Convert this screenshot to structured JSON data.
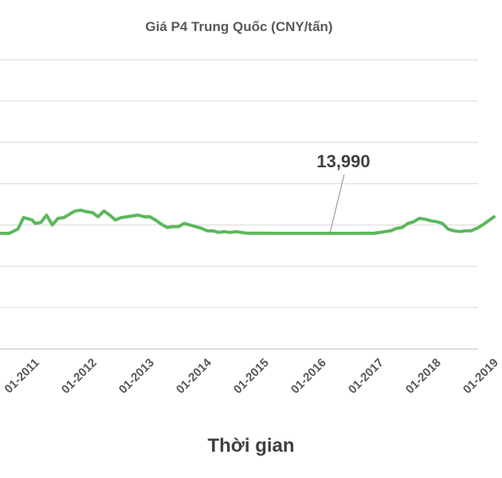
{
  "chart_data": {
    "type": "line",
    "title": "Giá P4 Trung Quốc (CNY/tấn)",
    "xlabel": "Thời gian",
    "ylabel": "",
    "x_tick_labels": [
      "01-2011",
      "01-2012",
      "01-2013",
      "01-2014",
      "01-2015",
      "01-2016",
      "01-2017",
      "01-2018",
      "01-2019"
    ],
    "ylim": [
      0,
      35000
    ],
    "grid": true,
    "legend": "none",
    "annotation": {
      "text": "13,990",
      "x": 2016.0,
      "y": 13990
    },
    "series": [
      {
        "color": "#5cb85c",
        "x": [
          2010.4,
          2010.55,
          2010.7,
          2010.8,
          2010.85,
          2010.95,
          2011.0,
          2011.1,
          2011.2,
          2011.3,
          2011.4,
          2011.5,
          2011.6,
          2011.7,
          2011.8,
          2011.9,
          2012.0,
          2012.1,
          2012.2,
          2012.3,
          2012.4,
          2012.5,
          2012.6,
          2012.7,
          2012.8,
          2012.9,
          2013.0,
          2013.1,
          2013.2,
          2013.3,
          2013.4,
          2013.5,
          2013.6,
          2013.7,
          2013.8,
          2013.9,
          2014.0,
          2014.1,
          2014.2,
          2014.3,
          2014.4,
          2014.5,
          2014.6,
          2014.7,
          2014.8,
          2014.9,
          2015.0,
          2015.2,
          2015.4,
          2015.6,
          2015.8,
          2016.0,
          2016.2,
          2016.4,
          2016.6,
          2016.8,
          2016.9,
          2017.0,
          2017.1,
          2017.2,
          2017.3,
          2017.4,
          2017.5,
          2017.6,
          2017.7,
          2017.8,
          2017.9,
          2018.0,
          2018.1,
          2018.2,
          2018.3,
          2018.4,
          2018.5,
          2018.6,
          2018.7,
          2018.8,
          2018.9,
          2019.0
        ],
        "y": [
          13990,
          13990,
          14500,
          15900,
          15800,
          15600,
          15200,
          15300,
          16200,
          15000,
          15800,
          15900,
          16300,
          16700,
          16800,
          16600,
          16500,
          16000,
          16700,
          16200,
          15600,
          15900,
          16000,
          16100,
          16200,
          16000,
          16000,
          15600,
          15100,
          14700,
          14800,
          14800,
          15200,
          15000,
          14800,
          14600,
          14300,
          14300,
          14100,
          14200,
          14100,
          14200,
          14100,
          14000,
          14000,
          14000,
          14000,
          13990,
          13990,
          13990,
          13990,
          13990,
          13990,
          13990,
          13990,
          14000,
          13990,
          14100,
          14200,
          14300,
          14600,
          14700,
          15200,
          15400,
          15800,
          15700,
          15500,
          15400,
          15200,
          14500,
          14300,
          14200,
          14300,
          14300,
          14600,
          15000,
          15500,
          16000
        ]
      }
    ]
  }
}
